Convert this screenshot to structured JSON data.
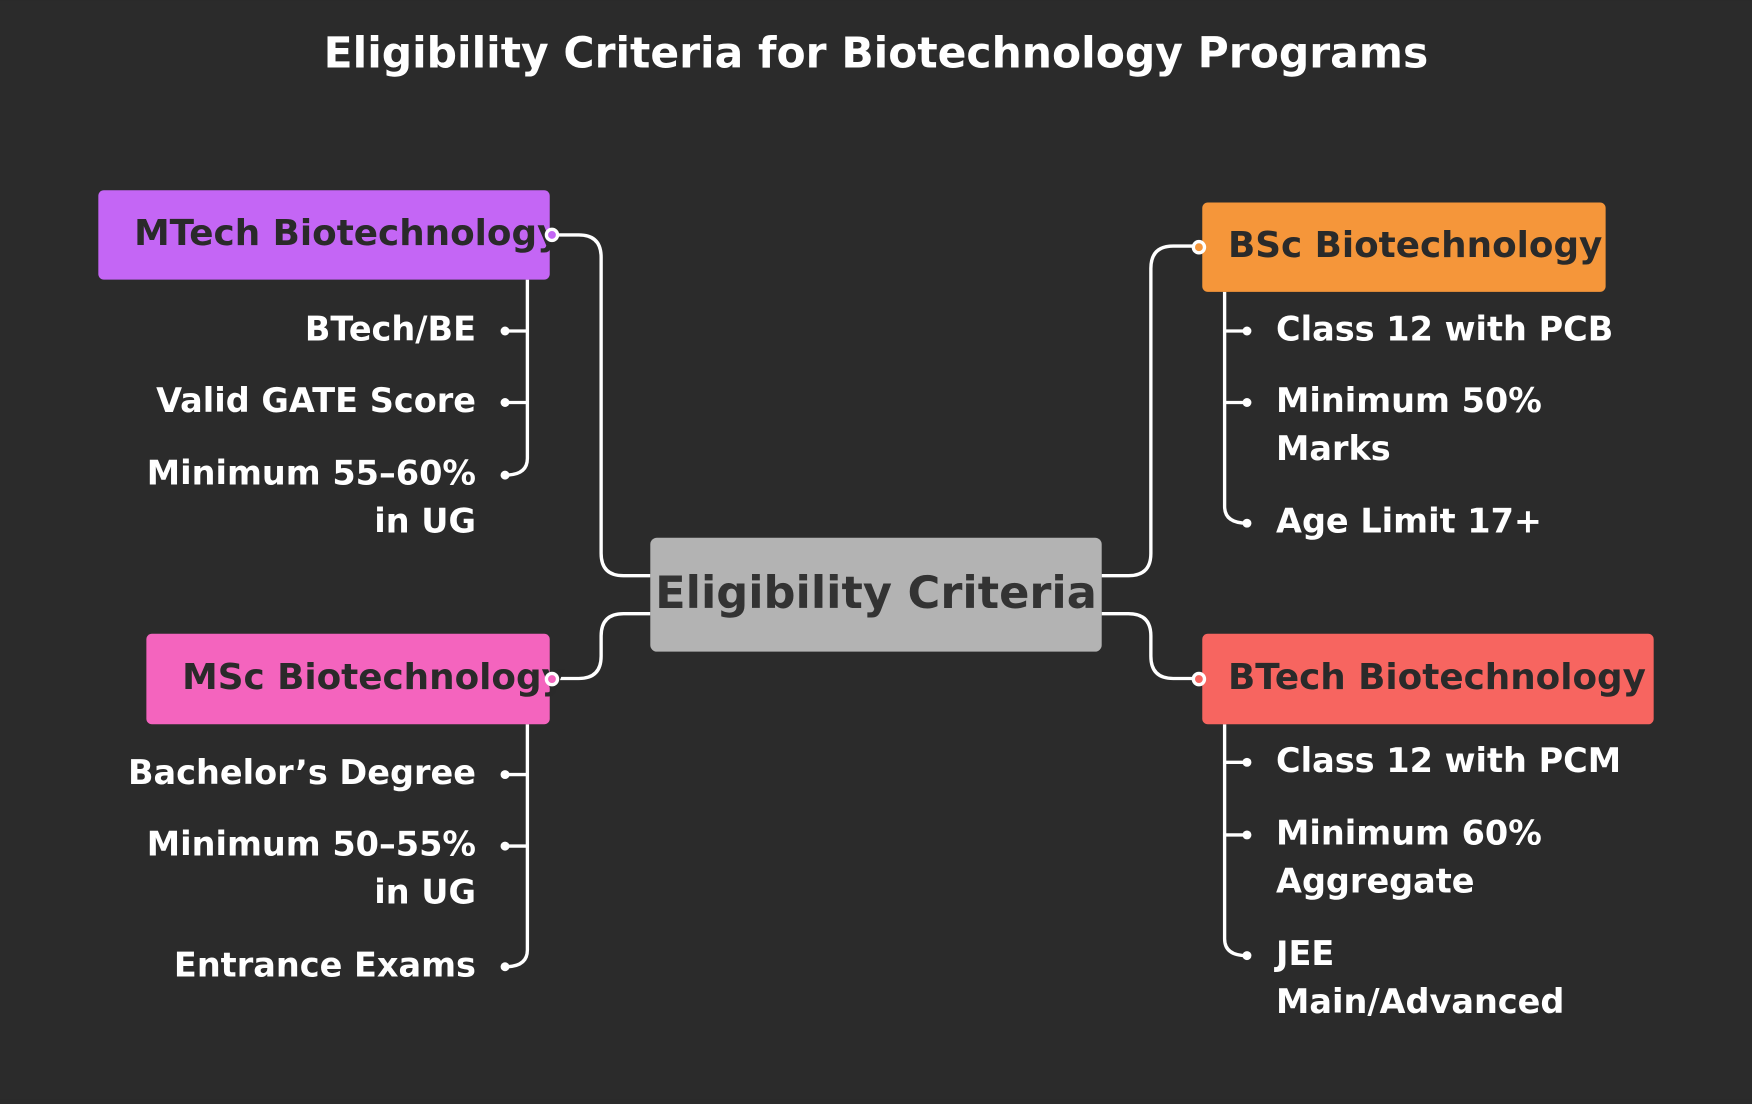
{
  "title": "Eligibility Criteria for Biotechnology Programs",
  "center": {
    "label": "Eligibility Criteria"
  },
  "branches": [
    {
      "label": "MTech Biotechnology",
      "items": [
        [
          "BTech/BE"
        ],
        [
          "Valid GATE Score"
        ],
        [
          "Minimum 55–60%",
          "in UG"
        ]
      ]
    },
    {
      "label": "MSc Biotechnology",
      "items": [
        [
          "Bachelor’s Degree"
        ],
        [
          "Minimum 50–55%",
          "in UG"
        ],
        [
          "Entrance Exams"
        ]
      ]
    },
    {
      "label": "BSc Biotechnology",
      "items": [
        [
          "Class 12 with PCB"
        ],
        [
          "Minimum 50%",
          "Marks"
        ],
        [
          "Age Limit 17+"
        ]
      ]
    },
    {
      "label": "BTech Biotechnology",
      "items": [
        [
          "Class 12 with PCM"
        ],
        [
          "Minimum 60%",
          "Aggregate"
        ],
        [
          "JEE",
          "Main/Advanced"
        ]
      ]
    }
  ]
}
